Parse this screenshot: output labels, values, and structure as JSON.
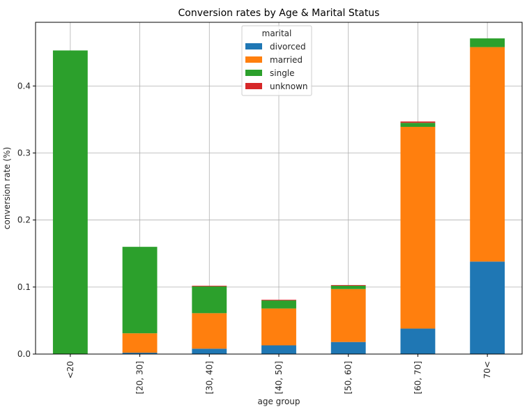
{
  "chart_data": {
    "type": "bar",
    "stacked": true,
    "title": "Conversion rates by Age & Marital Status",
    "xlabel": "age group",
    "ylabel": "conversion rate (%)",
    "ylim": [
      0,
      0.495
    ],
    "yticks": [
      0.0,
      0.1,
      0.2,
      0.3,
      0.4
    ],
    "ytick_labels": [
      "0.0",
      "0.1",
      "0.2",
      "0.3",
      "0.4"
    ],
    "grid": true,
    "legend": {
      "title": "marital",
      "placement": "top-center"
    },
    "categories": [
      "<20",
      "[20, 30]",
      "[30, 40]",
      "[40, 50]",
      "[50, 60]",
      "[60, 70]",
      "70<"
    ],
    "series": [
      {
        "name": "divorced",
        "color": "#1f77b4",
        "values": [
          0.0,
          0.002,
          0.008,
          0.013,
          0.018,
          0.038,
          0.138
        ]
      },
      {
        "name": "married",
        "color": "#ff7f0e",
        "values": [
          0.0,
          0.029,
          0.053,
          0.055,
          0.079,
          0.301,
          0.32
        ]
      },
      {
        "name": "single",
        "color": "#2ca02c",
        "values": [
          0.453,
          0.129,
          0.04,
          0.012,
          0.005,
          0.006,
          0.013
        ]
      },
      {
        "name": "unknown",
        "color": "#d62728",
        "values": [
          0.0,
          0.0,
          0.001,
          0.001,
          0.001,
          0.002,
          0.0
        ]
      }
    ]
  }
}
